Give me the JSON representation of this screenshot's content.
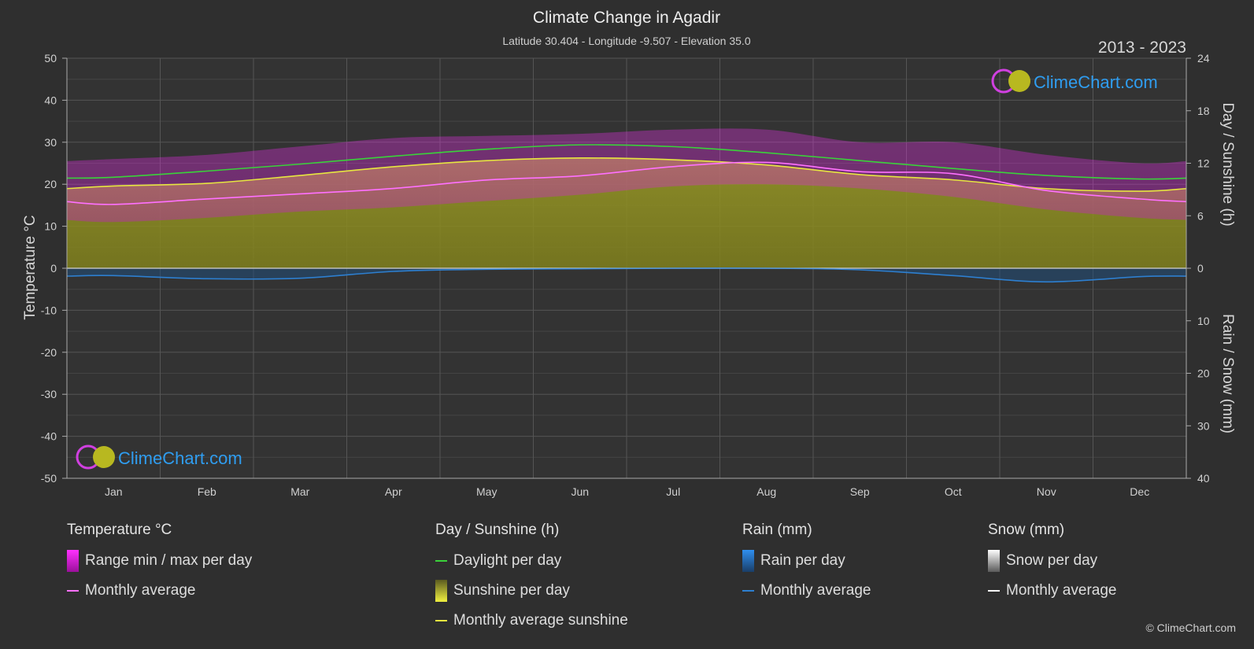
{
  "header": {
    "title": "Climate Change in Agadir",
    "subtitle": "Latitude 30.404 - Longitude -9.507 - Elevation 35.0",
    "period": "2013 - 2023"
  },
  "watermark": {
    "logo_text": "ClimeChart.com",
    "copyright": "© ClimeChart.com"
  },
  "colors": {
    "background": "#2f2f2f",
    "temp_range": "#d020d0",
    "temp_avg": "#ff70ff",
    "daylight": "#3ad23a",
    "sunshine_fill": "#8f8f20",
    "sunshine_avg": "#e6e640",
    "rain": "#2d7fd0",
    "snow": "#ffffff"
  },
  "chart_data": {
    "type": "line",
    "title": "Climate Change in Agadir",
    "categories": [
      "Jan",
      "Feb",
      "Mar",
      "Apr",
      "May",
      "Jun",
      "Jul",
      "Aug",
      "Sep",
      "Oct",
      "Nov",
      "Dec"
    ],
    "left_axis": {
      "label": "Temperature °C",
      "ylim": [
        -50,
        50
      ],
      "ticks": [
        50,
        40,
        30,
        20,
        10,
        0,
        -10,
        -20,
        -30,
        -40,
        -50
      ]
    },
    "right_axis_top": {
      "label": "Day / Sunshine (h)",
      "ylim": [
        0,
        24
      ],
      "ticks": [
        24,
        18,
        12,
        6,
        0
      ]
    },
    "right_axis_bottom": {
      "label": "Rain / Snow (mm)",
      "ylim": [
        0,
        40
      ],
      "ticks": [
        0,
        10,
        20,
        30,
        40
      ]
    },
    "grid": true,
    "series": [
      {
        "name": "Monthly average",
        "group": "Temperature °C",
        "axis": "temperature",
        "values": [
          15.2,
          16.5,
          17.7,
          19.0,
          21.0,
          22.0,
          24.2,
          25.2,
          23.0,
          22.5,
          18.5,
          16.5
        ]
      },
      {
        "name": "Range min / max per day (min)",
        "group": "Temperature °C",
        "axis": "temperature",
        "values": [
          11,
          12,
          13.5,
          14.5,
          16,
          17.5,
          19.5,
          20,
          19,
          17,
          14,
          12
        ]
      },
      {
        "name": "Range min / max per day (max)",
        "group": "Temperature °C",
        "axis": "temperature",
        "values": [
          26,
          27,
          29,
          31,
          31.5,
          32,
          33,
          33,
          30,
          30,
          27,
          25
        ]
      },
      {
        "name": "Daylight per day",
        "group": "Day / Sunshine (h)",
        "axis": "sunshine",
        "values": [
          10.4,
          11.1,
          11.9,
          12.8,
          13.6,
          14.1,
          13.9,
          13.2,
          12.3,
          11.4,
          10.6,
          10.2
        ]
      },
      {
        "name": "Monthly average sunshine",
        "group": "Day / Sunshine (h)",
        "axis": "sunshine",
        "values": [
          9.4,
          9.7,
          10.6,
          11.6,
          12.3,
          12.6,
          12.4,
          11.8,
          10.7,
          10.1,
          9.1,
          8.8
        ]
      },
      {
        "name": "Monthly average",
        "group": "Rain (mm)",
        "axis": "rain",
        "values": [
          1.4,
          2.0,
          1.9,
          0.6,
          0.2,
          0.1,
          0.0,
          0.0,
          0.3,
          1.4,
          2.6,
          1.6
        ]
      },
      {
        "name": "Monthly average",
        "group": "Snow (mm)",
        "axis": "rain",
        "values": [
          0,
          0,
          0,
          0,
          0,
          0,
          0,
          0,
          0,
          0,
          0,
          0
        ]
      }
    ]
  },
  "legend": {
    "temperature": {
      "title": "Temperature °C",
      "items": [
        "Range min / max per day",
        "Monthly average"
      ]
    },
    "sunshine": {
      "title": "Day / Sunshine (h)",
      "items": [
        "Daylight per day",
        "Sunshine per day",
        "Monthly average sunshine"
      ]
    },
    "rain": {
      "title": "Rain (mm)",
      "items": [
        "Rain per day",
        "Monthly average"
      ]
    },
    "snow": {
      "title": "Snow (mm)",
      "items": [
        "Snow per day",
        "Monthly average"
      ]
    }
  }
}
